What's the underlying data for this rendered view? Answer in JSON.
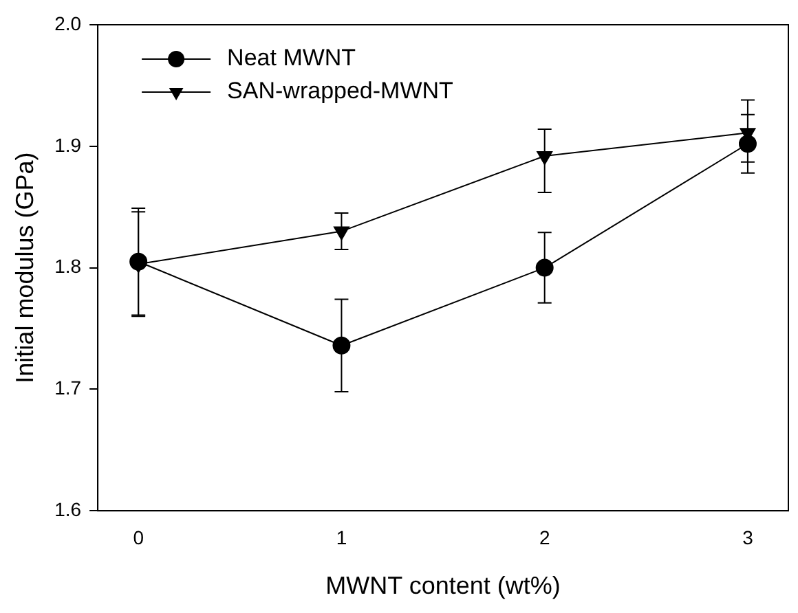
{
  "chart_data": {
    "type": "line",
    "xlabel": "MWNT content (wt%)",
    "ylabel": "Initial modulus (GPa)",
    "x": [
      0,
      1,
      2,
      3
    ],
    "xlim": [
      -0.2,
      3.2
    ],
    "xticks": [
      0,
      1,
      2,
      3
    ],
    "ylim": [
      1.6,
      2.0
    ],
    "yticks": [
      {
        "value": 1.6,
        "label": "1.6"
      },
      {
        "value": 1.7,
        "label": "1.7"
      },
      {
        "value": 1.8,
        "label": "1.8"
      },
      {
        "value": 1.9,
        "label": "1.9"
      },
      {
        "value": 2.0,
        "label": "2.0"
      }
    ],
    "grid": false,
    "legend": "top left",
    "line_style": "solid",
    "series": [
      {
        "name": "Neat MWNT",
        "color": "#000000",
        "marker": "circle",
        "values": [
          1.805,
          1.736,
          1.8,
          1.902
        ],
        "errors": [
          0.044,
          0.038,
          0.029,
          0.024
        ]
      },
      {
        "name": "SAN-wrapped-MWNT",
        "color": "#000000",
        "marker": "triangle",
        "values": [
          1.803,
          1.83,
          1.892,
          1.911
        ],
        "errors": [
          0.043,
          0.015,
          [
            1.862,
            1.914
          ],
          [
            1.887,
            1.938
          ]
        ]
      }
    ]
  }
}
